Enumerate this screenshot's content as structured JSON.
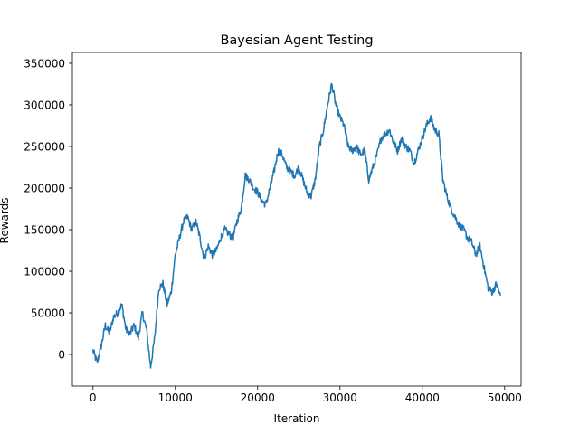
{
  "chart_data": {
    "type": "line",
    "title": "Bayesian Agent Testing",
    "xlabel": "Iteration",
    "ylabel": "Rewards",
    "xlim": [
      -2500,
      52000
    ],
    "ylim": [
      -38000,
      363000
    ],
    "x_ticks": [
      0,
      10000,
      20000,
      30000,
      40000,
      50000
    ],
    "x_tick_labels": [
      "0",
      "10000",
      "20000",
      "30000",
      "40000",
      "50000"
    ],
    "y_ticks": [
      0,
      50000,
      100000,
      150000,
      200000,
      250000,
      300000,
      350000
    ],
    "y_tick_labels": [
      "0",
      "50000",
      "100000",
      "150000",
      "200000",
      "250000",
      "300000",
      "350000"
    ],
    "grid": false,
    "series_color": "#1f77b4",
    "series": [
      {
        "x": [
          0,
          500,
          1000,
          1500,
          2000,
          2500,
          3000,
          3500,
          4000,
          4500,
          5000,
          5500,
          6000,
          6500,
          7000,
          7500,
          8000,
          8500,
          9000,
          9500,
          10000,
          10500,
          11000,
          11500,
          12000,
          12500,
          13000,
          13500,
          14000,
          14500,
          15000,
          15500,
          16000,
          16500,
          17000,
          17500,
          18000,
          18500,
          19000,
          19500,
          20000,
          20500,
          21000,
          21500,
          22000,
          22500,
          23000,
          23500,
          24000,
          24500,
          25000,
          25500,
          26000,
          26500,
          27000,
          27500,
          28000,
          28500,
          29000,
          29500,
          30000,
          30500,
          31000,
          31500,
          32000,
          32500,
          33000,
          33500,
          34000,
          34500,
          35000,
          35500,
          36000,
          36500,
          37000,
          37500,
          38000,
          38500,
          39000,
          39500,
          40000,
          40500,
          41000,
          41500,
          42000,
          42500,
          43000,
          43500,
          44000,
          44500,
          45000,
          45500,
          46000,
          46500,
          47000,
          47500,
          48000,
          48500,
          49000,
          49500
        ],
        "values": [
          5000,
          -10000,
          10000,
          35000,
          25000,
          45000,
          50000,
          60000,
          30000,
          25000,
          35000,
          20000,
          50000,
          30000,
          -15000,
          20000,
          80000,
          85000,
          60000,
          75000,
          120000,
          140000,
          160000,
          165000,
          150000,
          160000,
          140000,
          115000,
          130000,
          120000,
          125000,
          140000,
          150000,
          145000,
          140000,
          160000,
          175000,
          215000,
          210000,
          200000,
          195000,
          185000,
          180000,
          200000,
          220000,
          245000,
          240000,
          225000,
          220000,
          215000,
          225000,
          210000,
          195000,
          190000,
          210000,
          250000,
          270000,
          300000,
          325000,
          300000,
          285000,
          275000,
          250000,
          245000,
          250000,
          240000,
          245000,
          210000,
          225000,
          240000,
          260000,
          265000,
          270000,
          255000,
          245000,
          260000,
          250000,
          245000,
          230000,
          245000,
          260000,
          275000,
          285000,
          270000,
          265000,
          210000,
          190000,
          175000,
          165000,
          155000,
          150000,
          140000,
          135000,
          120000,
          130000,
          105000,
          80000,
          75000,
          85000,
          70000
        ]
      }
    ]
  }
}
